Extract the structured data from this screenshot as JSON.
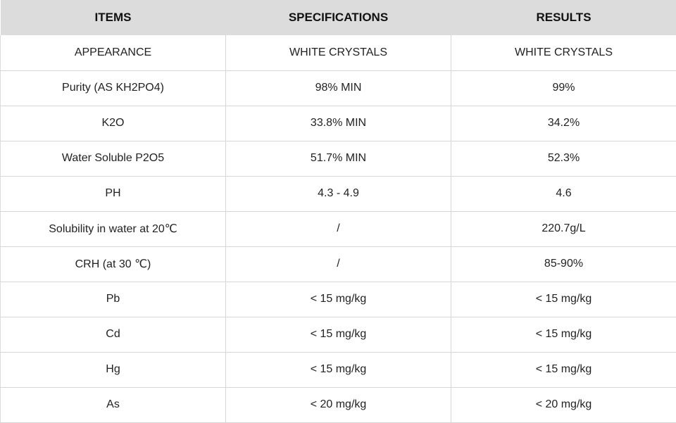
{
  "table": {
    "headers": [
      "ITEMS",
      "SPECIFICATIONS",
      "RESULTS"
    ],
    "rows": [
      [
        "APPEARANCE",
        "WHITE CRYSTALS",
        "WHITE CRYSTALS"
      ],
      [
        "Purity (AS KH2PO4)",
        "98% MIN",
        "99%"
      ],
      [
        "K2O",
        "33.8% MIN",
        "34.2%"
      ],
      [
        "Water Soluble P2O5",
        "51.7% MIN",
        "52.3%"
      ],
      [
        "PH",
        "4.3 - 4.9",
        "4.6"
      ],
      [
        "Solubility in water at 20℃",
        "/",
        "220.7g/L"
      ],
      [
        "CRH (at 30 ℃)",
        "/",
        "85-90%"
      ],
      [
        "Pb",
        "< 15 mg/kg",
        "< 15 mg/kg"
      ],
      [
        "Cd",
        "< 15 mg/kg",
        "< 15 mg/kg"
      ],
      [
        "Hg",
        "< 15 mg/kg",
        "< 15 mg/kg"
      ],
      [
        "As",
        "< 20 mg/kg",
        "< 20 mg/kg"
      ]
    ]
  }
}
